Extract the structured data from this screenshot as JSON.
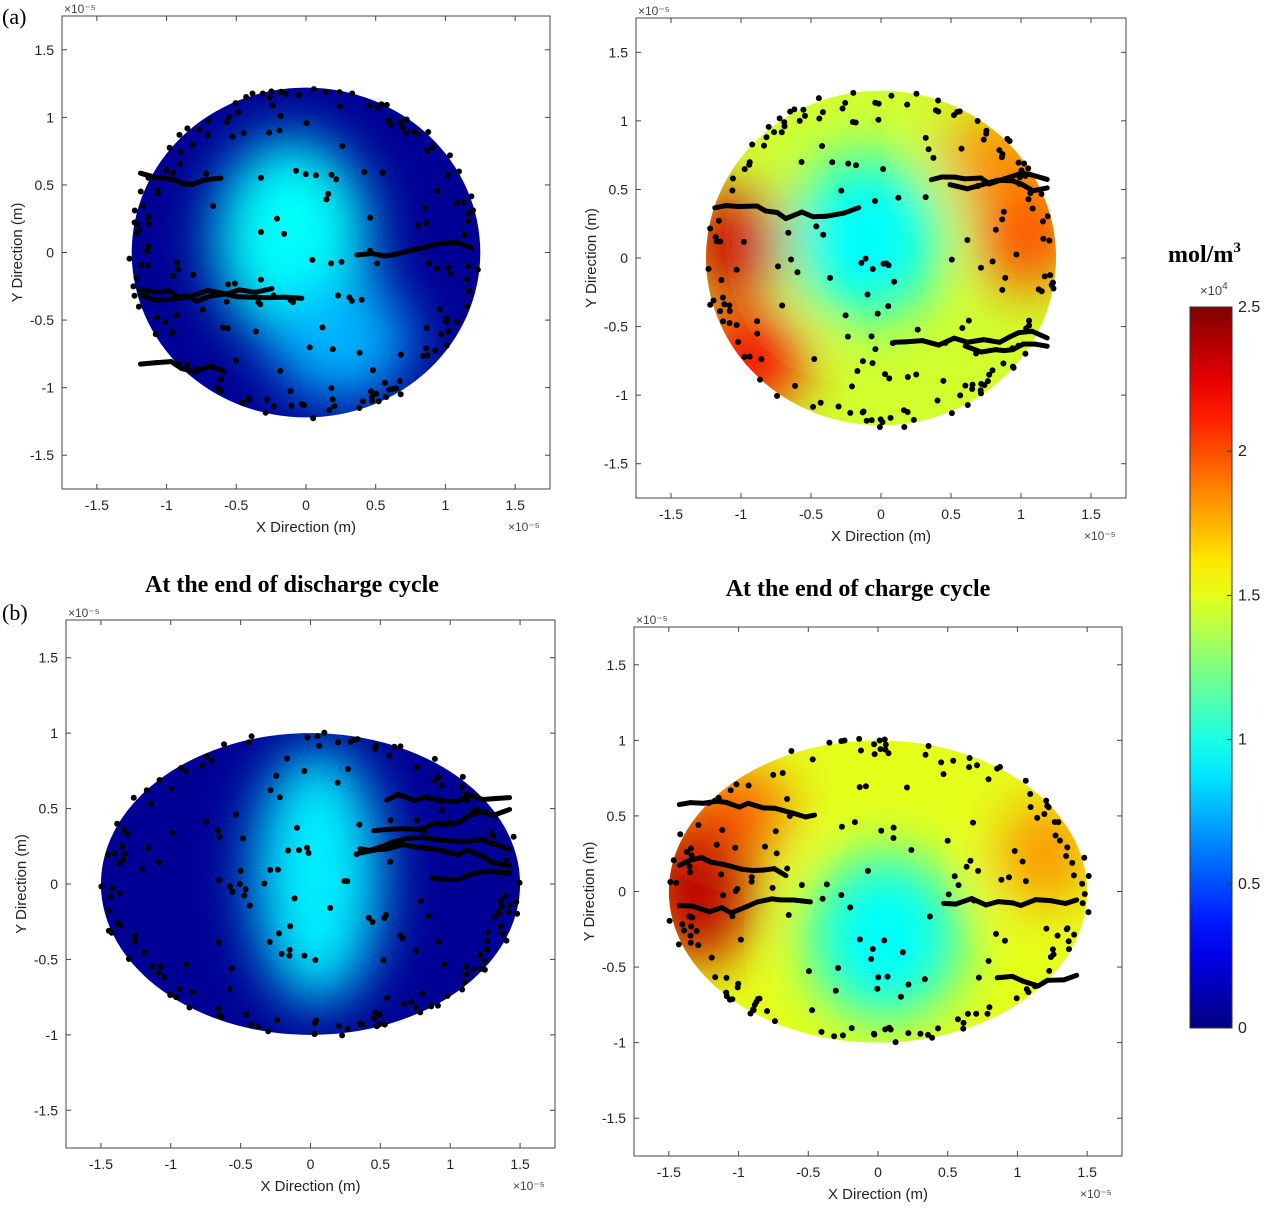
{
  "figure": {
    "panel_labels": [
      "(a)",
      "(b)"
    ],
    "row_titles": [
      "At the end of discharge cycle",
      "At the end of charge cycle"
    ],
    "colorbar": {
      "unit_label": "mol/m",
      "unit_superscript": "3",
      "exponent_base": "×10",
      "exponent_power": "4",
      "ticks": [
        "0",
        "0.5",
        "1",
        "1.5",
        "2",
        "2.5"
      ],
      "tick_values": [
        0,
        0.5,
        1,
        1.5,
        2,
        2.5
      ],
      "range": [
        0,
        2.5
      ],
      "colormap": "jet"
    }
  },
  "chart_data": [
    {
      "type": "heatmap",
      "panel": "(a)",
      "state": "discharge",
      "xlabel": "X Direction (m)",
      "ylabel": "Y Direction (m)",
      "x_exponent": "×10⁻⁵",
      "y_exponent": "×10⁻⁵",
      "xlim": [
        -1.75,
        1.75
      ],
      "ylim": [
        -1.75,
        1.75
      ],
      "xticks": [
        "-1.5",
        "-1",
        "-0.5",
        "0",
        "0.5",
        "1",
        "1.5"
      ],
      "yticks": [
        "-1.5",
        "-1",
        "-0.5",
        "0",
        "0.5",
        "1",
        "1.5"
      ],
      "domain": {
        "shape": "ellipse",
        "semi_axis_x": 1.25,
        "semi_axis_y": 1.22
      },
      "concentration_range": [
        0.05,
        0.95
      ],
      "background_value": 0.05,
      "peak_regions": [
        {
          "x": -0.1,
          "y": 0.1,
          "rx": 0.55,
          "ry": 0.75,
          "value": 0.95
        },
        {
          "x": 0.25,
          "y": -0.65,
          "rx": 0.5,
          "ry": 0.45,
          "value": 0.75
        }
      ]
    },
    {
      "type": "heatmap",
      "panel": "(a)",
      "state": "charge",
      "xlabel": "X Direction (m)",
      "ylabel": "Y Direction (m)",
      "x_exponent": "×10⁻⁵",
      "y_exponent": "×10⁻⁵",
      "xlim": [
        -1.75,
        1.75
      ],
      "ylim": [
        -1.75,
        1.75
      ],
      "xticks": [
        "-1.5",
        "-1",
        "-0.5",
        "0",
        "0.5",
        "1",
        "1.5"
      ],
      "yticks": [
        "-1.5",
        "-1",
        "-0.5",
        "0",
        "0.5",
        "1",
        "1.5"
      ],
      "domain": {
        "shape": "ellipse",
        "semi_axis_x": 1.25,
        "semi_axis_y": 1.22
      },
      "concentration_range": [
        0.95,
        2.4
      ],
      "background_value": 1.45,
      "peak_regions": [
        {
          "x": -0.1,
          "y": 0.15,
          "rx": 0.55,
          "ry": 0.6,
          "value": 0.95
        },
        {
          "x": -1.05,
          "y": 0.1,
          "rx": 0.35,
          "ry": 0.4,
          "value": 2.3
        },
        {
          "x": -0.95,
          "y": -0.75,
          "rx": 0.4,
          "ry": 0.35,
          "value": 2.2
        },
        {
          "x": 1.05,
          "y": 0.2,
          "rx": 0.35,
          "ry": 0.45,
          "value": 2.0
        },
        {
          "x": 0.85,
          "y": 0.75,
          "rx": 0.4,
          "ry": 0.3,
          "value": 1.85
        }
      ]
    },
    {
      "type": "heatmap",
      "panel": "(b)",
      "state": "discharge",
      "xlabel": "X Direction (m)",
      "ylabel": "Y Direction (m)",
      "x_exponent": "×10⁻⁵",
      "y_exponent": "×10⁻⁵",
      "xlim": [
        -1.75,
        1.75
      ],
      "ylim": [
        -1.75,
        1.75
      ],
      "xticks": [
        "-1.5",
        "-1",
        "-0.5",
        "0",
        "0.5",
        "1",
        "1.5"
      ],
      "yticks": [
        "-1.5",
        "-1",
        "-0.5",
        "0",
        "0.5",
        "1",
        "1.5"
      ],
      "domain": {
        "shape": "ellipse",
        "semi_axis_x": 1.5,
        "semi_axis_y": 1.0
      },
      "concentration_range": [
        0.05,
        0.9
      ],
      "background_value": 0.05,
      "peak_regions": [
        {
          "x": 0.05,
          "y": 0.05,
          "rx": 0.45,
          "ry": 0.85,
          "value": 0.9
        }
      ]
    },
    {
      "type": "heatmap",
      "panel": "(b)",
      "state": "charge",
      "xlabel": "X Direction (m)",
      "ylabel": "Y Direction (m)",
      "x_exponent": "×10⁻⁵",
      "y_exponent": "×10⁻⁵",
      "xlim": [
        -1.75,
        1.75
      ],
      "ylim": [
        -1.75,
        1.75
      ],
      "xticks": [
        "-1.5",
        "-1",
        "-0.5",
        "0",
        "0.5",
        "1",
        "1.5"
      ],
      "yticks": [
        "-1.5",
        "-1",
        "-0.5",
        "0",
        "0.5",
        "1",
        "1.5"
      ],
      "domain": {
        "shape": "ellipse",
        "semi_axis_x": 1.5,
        "semi_axis_y": 1.0
      },
      "concentration_range": [
        0.95,
        2.4
      ],
      "background_value": 1.5,
      "peak_regions": [
        {
          "x": 0.05,
          "y": -0.3,
          "rx": 0.55,
          "ry": 0.55,
          "value": 0.95
        },
        {
          "x": -1.3,
          "y": 0.05,
          "rx": 0.4,
          "ry": 0.55,
          "value": 2.35
        },
        {
          "x": -1.0,
          "y": 0.55,
          "rx": 0.35,
          "ry": 0.25,
          "value": 2.0
        },
        {
          "x": 1.2,
          "y": 0.25,
          "rx": 0.3,
          "ry": 0.35,
          "value": 1.85
        }
      ]
    }
  ]
}
